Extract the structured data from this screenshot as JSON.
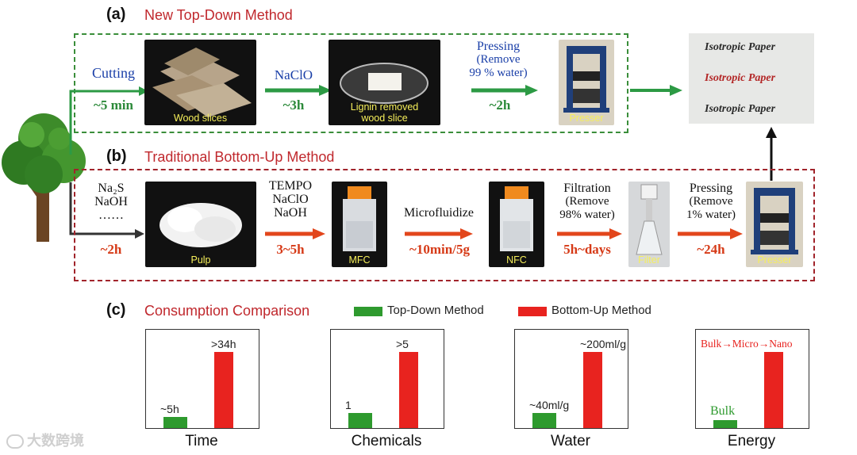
{
  "panel_a": {
    "letter": "(a)",
    "title": "New Top-Down Method",
    "cutting_label": "Cutting",
    "cutting_time": "~5 min",
    "photo1_label": "Wood slices",
    "naclo_label": "NaClO",
    "naclo_time": "~3h",
    "photo2_label_line1": "Lignin removed",
    "photo2_label_line2": "wood slice",
    "pressing_line1": "Pressing",
    "pressing_line2": "(Remove",
    "pressing_line3": "99 % water)",
    "pressing_time": "~2h",
    "photo3_label": "Presser",
    "result_lines": [
      "Isotropic Paper",
      "Isotropic Paper",
      "Isotropic Paper"
    ]
  },
  "panel_b": {
    "letter": "(b)",
    "title": "Traditional Bottom-Up Method",
    "chem_line1": "Na₂S",
    "chem_line2": "NaOH",
    "chem_line3": "……",
    "step1_time": "~2h",
    "photo1_label": "Pulp",
    "step2_line1": "TEMPO",
    "step2_line2": "NaClO",
    "step2_line3": "NaOH",
    "step2_time": "3~5h",
    "photo2_label": "MFC",
    "step3_label": "Microfluidize",
    "step3_time": "~10min/5g",
    "photo3_label": "NFC",
    "step4_line1": "Filtration",
    "step4_line2": "(Remove",
    "step4_line3": "98% water)",
    "step4_time": "5h~days",
    "photo4_label": "Filter",
    "step5_line1": "Pressing",
    "step5_line2": "(Remove",
    "step5_line3": "1% water)",
    "step5_time": "~24h",
    "photo5_label": "Presser"
  },
  "panel_c": {
    "letter": "(c)",
    "title": "Consumption Comparison",
    "legend_top_down": "Top-Down Method",
    "legend_bottom_up": "Bottom-Up Method"
  },
  "colors": {
    "top_down": "#2e9a2e",
    "bottom_up": "#e8231f",
    "accent_red": "#c0282d",
    "arrow_green": "#2c9a44",
    "arrow_orange": "#e2461c"
  },
  "chart_data": [
    {
      "type": "bar",
      "categories": [
        "Top-Down Method",
        "Bottom-Up Method"
      ],
      "values": [
        5,
        34
      ],
      "value_labels": [
        "~5h",
        ">34h"
      ],
      "xlabel": "Time"
    },
    {
      "type": "bar",
      "categories": [
        "Top-Down Method",
        "Bottom-Up Method"
      ],
      "values": [
        1,
        5
      ],
      "value_labels": [
        "1",
        ">5"
      ],
      "xlabel": "Chemicals"
    },
    {
      "type": "bar",
      "categories": [
        "Top-Down Method",
        "Bottom-Up Method"
      ],
      "values": [
        40,
        200
      ],
      "value_labels": [
        "~40ml/g",
        "~200ml/g"
      ],
      "xlabel": "Water"
    },
    {
      "type": "bar",
      "categories": [
        "Top-Down Method",
        "Bottom-Up Method"
      ],
      "values": [
        1,
        10
      ],
      "value_labels": [
        "Bulk",
        "Bulk→Micro→Nano"
      ],
      "xlabel": "Energy"
    }
  ],
  "watermark": "大数跨境"
}
